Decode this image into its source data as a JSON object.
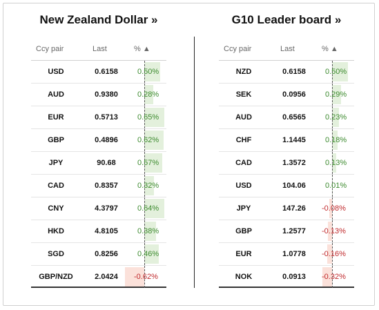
{
  "panels": [
    {
      "title": "New Zealand Dollar »",
      "headers": {
        "ccy": "Ccy pair",
        "last": "Last",
        "pct": "% ▲"
      },
      "rows": [
        {
          "ccy": "USD",
          "last": "0.6158",
          "pct": "0.50%",
          "value": 0.5
        },
        {
          "ccy": "AUD",
          "last": "0.9380",
          "pct": "0.28%",
          "value": 0.28
        },
        {
          "ccy": "EUR",
          "last": "0.5713",
          "pct": "0.65%",
          "value": 0.65
        },
        {
          "ccy": "GBP",
          "last": "0.4896",
          "pct": "0.62%",
          "value": 0.62
        },
        {
          "ccy": "JPY",
          "last": "90.68",
          "pct": "0.57%",
          "value": 0.57
        },
        {
          "ccy": "CAD",
          "last": "0.8357",
          "pct": "0.32%",
          "value": 0.32
        },
        {
          "ccy": "CNY",
          "last": "4.3797",
          "pct": "0.64%",
          "value": 0.64
        },
        {
          "ccy": "HKD",
          "last": "4.8105",
          "pct": "0.38%",
          "value": 0.38
        },
        {
          "ccy": "SGD",
          "last": "0.8256",
          "pct": "0.46%",
          "value": 0.46
        },
        {
          "ccy": "GBP/NZD",
          "last": "2.0424",
          "pct": "-0.62%",
          "value": -0.62
        }
      ]
    },
    {
      "title": "G10 Leader board »",
      "headers": {
        "ccy": "Ccy pair",
        "last": "Last",
        "pct": "% ▲"
      },
      "rows": [
        {
          "ccy": "NZD",
          "last": "0.6158",
          "pct": "0.50%",
          "value": 0.5
        },
        {
          "ccy": "SEK",
          "last": "0.0956",
          "pct": "0.29%",
          "value": 0.29
        },
        {
          "ccy": "AUD",
          "last": "0.6565",
          "pct": "0.23%",
          "value": 0.23
        },
        {
          "ccy": "CHF",
          "last": "1.1445",
          "pct": "0.18%",
          "value": 0.18
        },
        {
          "ccy": "CAD",
          "last": "1.3572",
          "pct": "0.13%",
          "value": 0.13
        },
        {
          "ccy": "USD",
          "last": "104.06",
          "pct": "0.01%",
          "value": 0.01
        },
        {
          "ccy": "JPY",
          "last": "147.26",
          "pct": "-0.08%",
          "value": -0.08
        },
        {
          "ccy": "GBP",
          "last": "1.2577",
          "pct": "-0.13%",
          "value": -0.13
        },
        {
          "ccy": "EUR",
          "last": "1.0778",
          "pct": "-0.16%",
          "value": -0.16
        },
        {
          "ccy": "NOK",
          "last": "0.0913",
          "pct": "-0.32%",
          "value": -0.32
        }
      ]
    }
  ],
  "colors": {
    "positive_text": "#3c8a2e",
    "negative_text": "#c0282b",
    "positive_bar": "#e3f0dc",
    "negative_bar": "#fbe1da"
  }
}
